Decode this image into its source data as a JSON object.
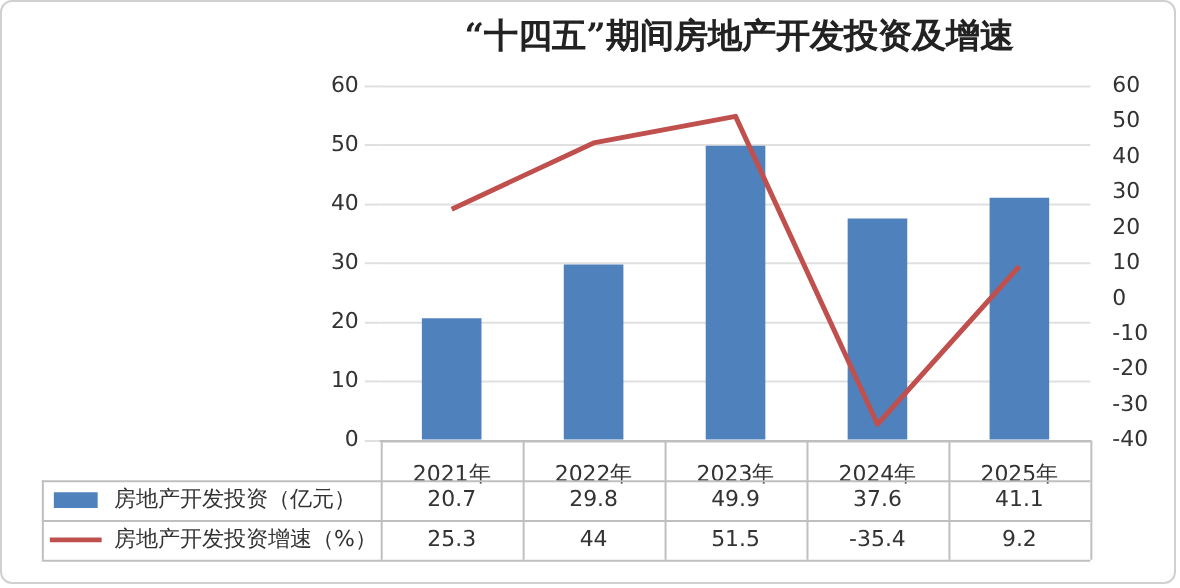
{
  "chart_data": {
    "type": "bar",
    "title": "“十四五”期间房地产开发投资及增速",
    "categories": [
      "2021年",
      "2022年",
      "2023年",
      "2024年",
      "2025年"
    ],
    "series": [
      {
        "name": "房地产开发投资（亿元）",
        "color": "#4f81bd",
        "values": [
          20.7,
          29.8,
          49.9,
          37.6,
          41.1
        ]
      },
      {
        "name": "房地产开发投资增速（%）",
        "type": "line",
        "axis": "y2",
        "color": "#c0504d",
        "values": [
          25.3,
          44,
          51.5,
          -35.4,
          9.2
        ],
        "marker": "none"
      }
    ],
    "ylim": [
      0,
      60
    ],
    "yticks": [
      0,
      10,
      20,
      30,
      40,
      50,
      60
    ],
    "y2lim": [
      -40,
      60
    ],
    "y2ticks": [
      -40,
      -30,
      -20,
      -10,
      0,
      10,
      20,
      30,
      40,
      50,
      60
    ],
    "grid": "y",
    "legend": "bottom",
    "data_labels": true
  }
}
